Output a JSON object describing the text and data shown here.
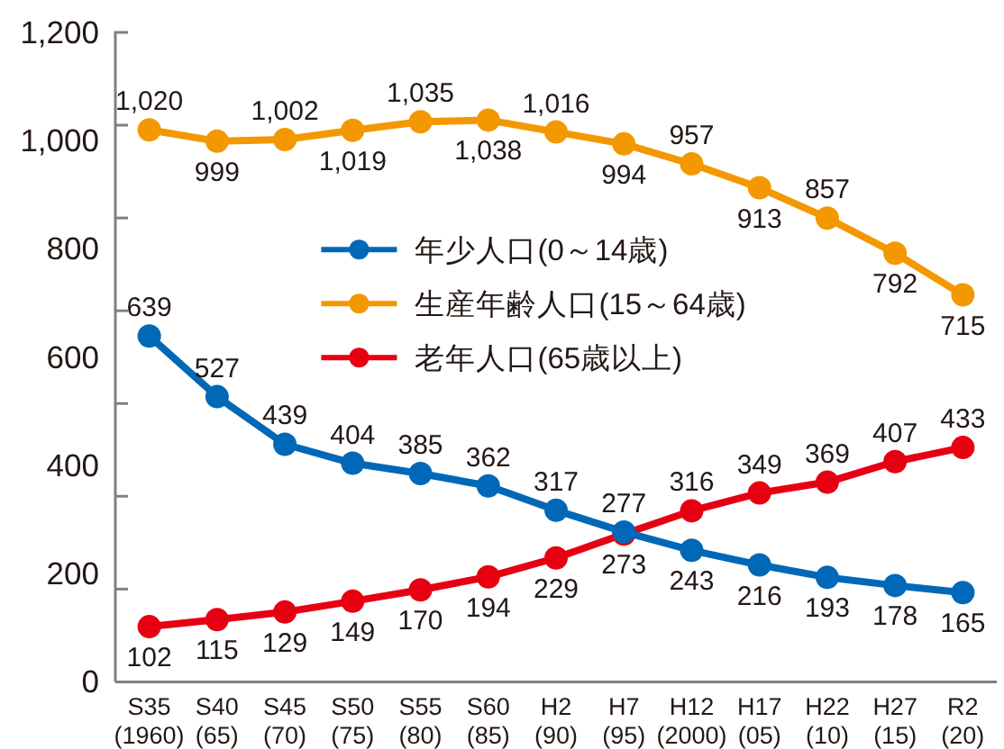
{
  "chart_data": {
    "type": "line",
    "categories": [
      "S35\n(1960)",
      "S40\n(65)",
      "S45\n(70)",
      "S50\n(75)",
      "S55\n(80)",
      "S60\n(85)",
      "H2\n(90)",
      "H7\n(95)",
      "H12\n(2000)",
      "H17\n(05)",
      "H22\n(10)",
      "H27\n(15)",
      "R2\n(20)"
    ],
    "series": [
      {
        "name": "年少人口(0～14歳)",
        "color": "#0068b7",
        "values": [
          639,
          527,
          439,
          404,
          385,
          362,
          317,
          277,
          243,
          216,
          193,
          178,
          165
        ],
        "value_labels": [
          "639",
          "527",
          "439",
          "404",
          "385",
          "362",
          "317",
          "277",
          "243",
          "216",
          "193",
          "178",
          "165"
        ]
      },
      {
        "name": "生産年齢人口(15～64歳)",
        "color": "#f39800",
        "values": [
          1020,
          999,
          1002,
          1019,
          1035,
          1038,
          1016,
          994,
          957,
          913,
          857,
          792,
          715
        ],
        "value_labels": [
          "1,020",
          "999",
          "1,002",
          "1,019",
          "1,035",
          "1,038",
          "1,016",
          "994",
          "957",
          "913",
          "857",
          "792",
          "715"
        ]
      },
      {
        "name": "老年人口(65歳以上)",
        "color": "#e60012",
        "values": [
          102,
          115,
          129,
          149,
          170,
          194,
          229,
          273,
          316,
          349,
          369,
          407,
          433
        ],
        "value_labels": [
          "102",
          "115",
          "129",
          "149",
          "170",
          "194",
          "229",
          "273",
          "316",
          "349",
          "369",
          "407",
          "433"
        ]
      }
    ],
    "ylim": [
      0,
      1200
    ],
    "yticks": [
      0,
      {
        "value": 171.4,
        "label": null
      },
      200,
      {
        "value": 342.9,
        "label": null
      },
      400,
      {
        "value": 514.3,
        "label": null
      },
      600,
      {
        "value": 685.7,
        "label": null
      },
      800,
      {
        "value": 857.1,
        "label": null
      },
      {
        "value": 1000,
        "label": "1,000"
      },
      {
        "value": 1028.6,
        "label": null
      },
      {
        "value": 1200,
        "label": "1,200"
      }
    ],
    "legend": "center",
    "marker": "circle"
  }
}
